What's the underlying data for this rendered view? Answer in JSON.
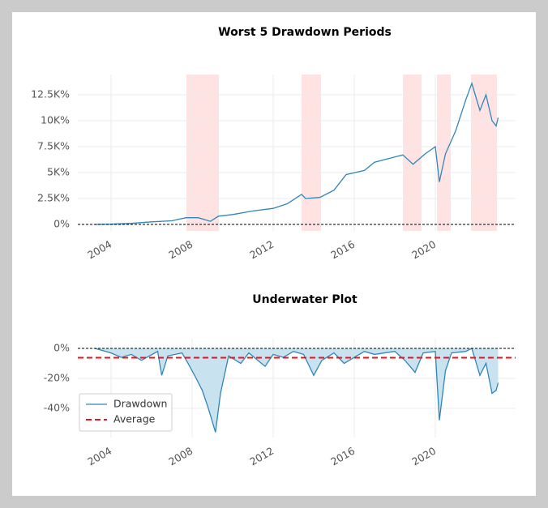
{
  "chart_data": [
    {
      "type": "line",
      "title": "Worst 5 Drawdown Periods",
      "series": [
        {
          "color": "#2f86b8",
          "x": [
            2003.2,
            2004,
            2005,
            2006,
            2007,
            2007.7,
            2008.3,
            2008.9,
            2009.3,
            2010,
            2011,
            2012,
            2012.7,
            2013.4,
            2013.6,
            2014.3,
            2015,
            2015.6,
            2016.5,
            2017,
            2018,
            2018.4,
            2018.9,
            2019.5,
            2020,
            2020.2,
            2020.5,
            2021,
            2021.5,
            2021.8,
            2022.2,
            2022.5,
            2022.8,
            2023,
            2023.1
          ],
          "values": [
            0,
            20,
            100,
            250,
            350,
            650,
            650,
            300,
            800,
            950,
            1300,
            1550,
            2000,
            2900,
            2500,
            2600,
            3300,
            4800,
            5200,
            6000,
            6500,
            6700,
            5800,
            6800,
            7500,
            4100,
            6800,
            9000,
            12000,
            13600,
            11000,
            12500,
            10000,
            9500,
            10300
          ]
        }
      ],
      "spans": [
        [
          2007.72,
          2009.32
        ],
        [
          2013.4,
          2014.36
        ],
        [
          2018.4,
          2019.32
        ],
        [
          2020.08,
          2020.76
        ],
        [
          2021.76,
          2023.04
        ]
      ],
      "span_color": "#ffe3e3",
      "reference_lines": [
        {
          "value": 0,
          "color": "#000000"
        }
      ],
      "xlim": [
        2002.36,
        2023.96
      ],
      "xticks": [
        2004,
        2008,
        2012,
        2016,
        2020
      ],
      "ylim": [
        -625,
        14450
      ],
      "yticks": [
        {
          "value": 0,
          "label": "0%"
        },
        {
          "value": 2500,
          "label": "2.5K%"
        },
        {
          "value": 5000,
          "label": "5K%"
        },
        {
          "value": 7500,
          "label": "7.5K%"
        },
        {
          "value": 10000,
          "label": "10K%"
        },
        {
          "value": 12500,
          "label": "12.5K%"
        }
      ],
      "grid": true
    },
    {
      "type": "area",
      "title": "Underwater Plot",
      "series": [
        {
          "name": "Drawdown",
          "color": "#2f86b8",
          "fill": "#c9e2f0",
          "x": [
            2003.2,
            2004,
            2004.5,
            2005,
            2005.5,
            2006.3,
            2006.5,
            2006.8,
            2007.5,
            2007.8,
            2008.2,
            2008.5,
            2008.8,
            2009.15,
            2009.4,
            2009.8,
            2010.4,
            2010.8,
            2011.6,
            2012,
            2012.5,
            2013,
            2013.5,
            2014,
            2014.4,
            2015,
            2015.5,
            2016,
            2016.5,
            2017,
            2018,
            2018.5,
            2019,
            2019.4,
            2020,
            2020.2,
            2020.5,
            2020.8,
            2021.5,
            2021.8,
            2022.2,
            2022.5,
            2022.8,
            2023,
            2023.1
          ],
          "values": [
            0,
            -3,
            -6,
            -4,
            -8,
            -2,
            -18,
            -5,
            -3,
            -10,
            -20,
            -28,
            -40,
            -56,
            -30,
            -5,
            -10,
            -3,
            -12,
            -4,
            -6,
            -2,
            -4,
            -18,
            -8,
            -3,
            -10,
            -6,
            -2,
            -4,
            -2,
            -8,
            -16,
            -3,
            -2,
            -48,
            -15,
            -3,
            -2,
            0,
            -18,
            -10,
            -30,
            -28,
            -23
          ]
        }
      ],
      "reference_lines": [
        {
          "value": 0,
          "color": "#000000"
        },
        {
          "name": "Average",
          "value": -6.2,
          "color": "#e8141c",
          "bold": true
        }
      ],
      "legend": "lower left",
      "xlim": [
        2002.36,
        2023.96
      ],
      "xticks": [
        2004,
        2008,
        2012,
        2016,
        2020
      ],
      "ylim": [
        -59.5,
        6.5
      ],
      "yticks": [
        {
          "value": 0,
          "label": "0%"
        },
        {
          "value": -20,
          "label": "-20%"
        },
        {
          "value": -40,
          "label": "-40%"
        }
      ],
      "grid": true
    }
  ]
}
